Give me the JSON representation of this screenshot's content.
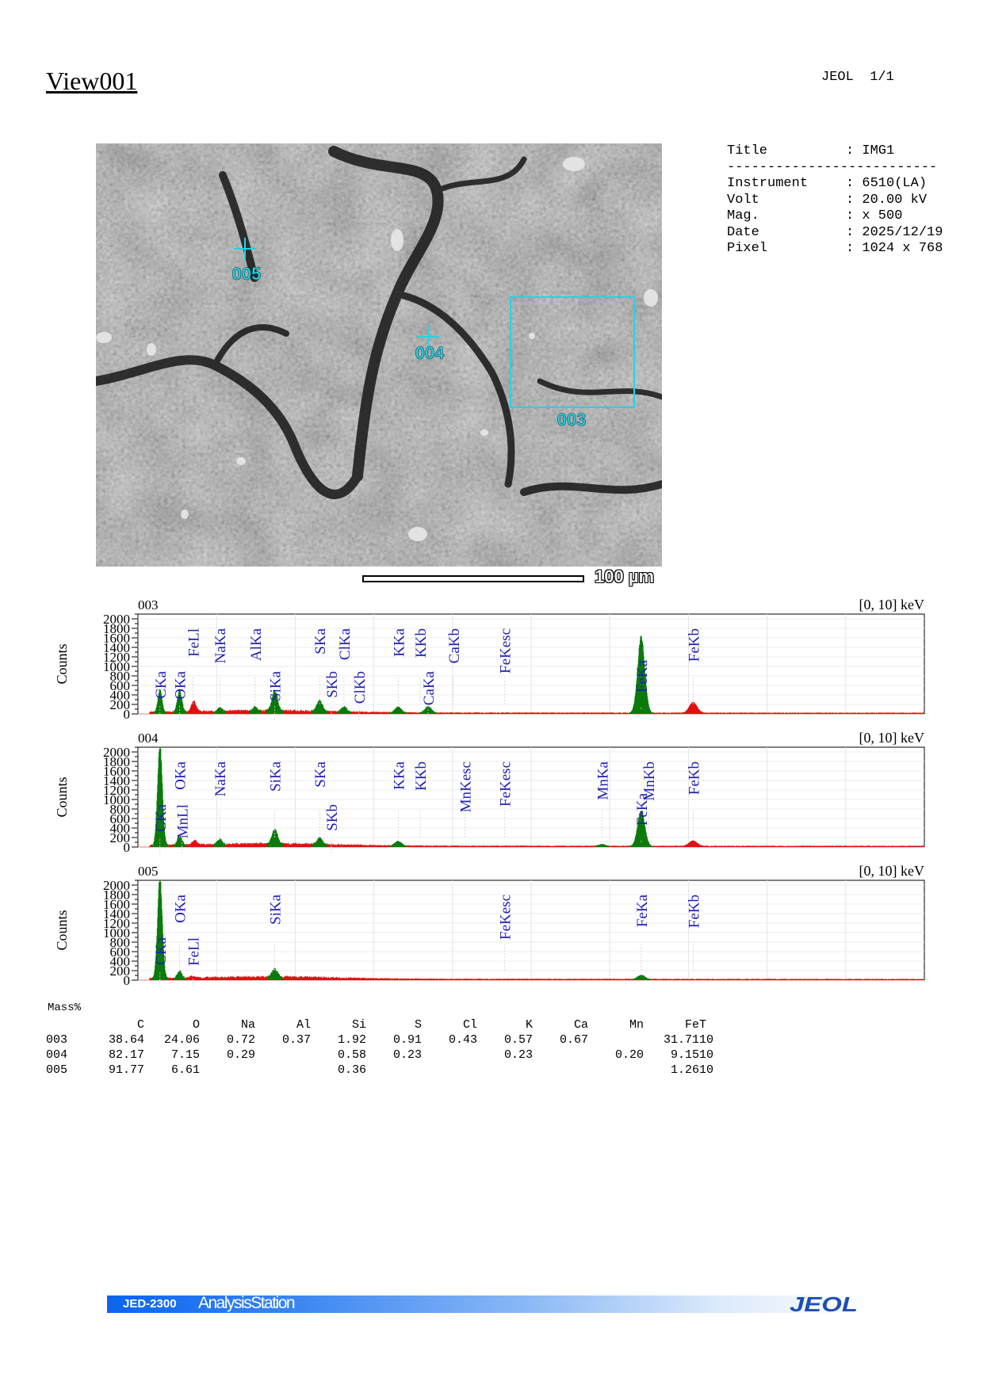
{
  "page": {
    "view_title": "View001",
    "maker": "JEOL",
    "page_number": "1/1"
  },
  "image": {
    "scale_label": "100 µm",
    "markers": [
      {
        "id": "005",
        "type": "point"
      },
      {
        "id": "004",
        "type": "point"
      },
      {
        "id": "003",
        "type": "area"
      }
    ],
    "marker_color": "#22d3e6"
  },
  "meta": {
    "separator": "--------------------------",
    "title": {
      "label": "Title",
      "value": ": IMG1"
    },
    "rows": [
      {
        "label": "Instrument",
        "value": ": 6510(LA)"
      },
      {
        "label": "Volt",
        "value": ": 20.00 kV"
      },
      {
        "label": "Mag.",
        "value": ": x 500"
      },
      {
        "label": "Date",
        "value": ": 2025/12/19"
      },
      {
        "label": "Pixel",
        "value": ": 1024 x 768"
      }
    ]
  },
  "chart_data": [
    {
      "type": "area",
      "title": "003",
      "range_label": "[0, 10] keV",
      "ylabel": "Counts",
      "xlim": [
        0,
        10
      ],
      "ylim": [
        0,
        2100
      ],
      "yticks": [
        0,
        200,
        400,
        600,
        800,
        1000,
        1200,
        1400,
        1600,
        1800,
        2000
      ],
      "colors": {
        "identified": "#0a7a0a",
        "background": "#e01010",
        "label": "#1f1fb4"
      },
      "peaks": [
        {
          "energy": 0.28,
          "height": 480,
          "width": 0.025,
          "color": "green"
        },
        {
          "energy": 0.53,
          "height": 450,
          "width": 0.028,
          "color": "green"
        },
        {
          "energy": 0.71,
          "height": 220,
          "width": 0.03,
          "color": "red"
        },
        {
          "energy": 1.04,
          "height": 70,
          "width": 0.03,
          "color": "green"
        },
        {
          "energy": 1.49,
          "height": 80,
          "width": 0.03,
          "color": "green"
        },
        {
          "energy": 1.74,
          "height": 420,
          "width": 0.035,
          "color": "green"
        },
        {
          "energy": 2.31,
          "height": 230,
          "width": 0.035,
          "color": "green"
        },
        {
          "energy": 2.62,
          "height": 110,
          "width": 0.035,
          "color": "green"
        },
        {
          "energy": 3.31,
          "height": 120,
          "width": 0.04,
          "color": "green"
        },
        {
          "energy": 3.69,
          "height": 140,
          "width": 0.04,
          "color": "green"
        },
        {
          "energy": 6.4,
          "height": 1580,
          "width": 0.045,
          "color": "green"
        },
        {
          "energy": 7.06,
          "height": 220,
          "width": 0.05,
          "color": "red"
        }
      ],
      "labels": [
        {
          "text": "CKa",
          "energy": 0.28,
          "pos": "low"
        },
        {
          "text": "OKa",
          "energy": 0.53,
          "pos": "low"
        },
        {
          "text": "FeLl",
          "energy": 0.7,
          "pos": "high"
        },
        {
          "text": "NaKa",
          "energy": 1.04,
          "pos": "high"
        },
        {
          "text": "AlKa",
          "energy": 1.49,
          "pos": "high"
        },
        {
          "text": "SiKa",
          "energy": 1.74,
          "pos": "low"
        },
        {
          "text": "SKa",
          "energy": 2.31,
          "pos": "high"
        },
        {
          "text": "SKb",
          "energy": 2.46,
          "pos": "low"
        },
        {
          "text": "ClKa",
          "energy": 2.62,
          "pos": "high"
        },
        {
          "text": "ClKb",
          "energy": 2.81,
          "pos": "low"
        },
        {
          "text": "KKa",
          "energy": 3.31,
          "pos": "high"
        },
        {
          "text": "KKb",
          "energy": 3.59,
          "pos": "high"
        },
        {
          "text": "CaKa",
          "energy": 3.69,
          "pos": "low"
        },
        {
          "text": "CaKb",
          "energy": 4.01,
          "pos": "high"
        },
        {
          "text": "FeKesc",
          "energy": 4.66,
          "pos": "high"
        },
        {
          "text": "FeKa",
          "energy": 6.4,
          "pos": "mid"
        },
        {
          "text": "FeKb",
          "energy": 7.06,
          "pos": "high"
        }
      ]
    },
    {
      "type": "area",
      "title": "004",
      "range_label": "[0, 10] keV",
      "ylabel": "Counts",
      "xlim": [
        0,
        10
      ],
      "ylim": [
        0,
        2100
      ],
      "yticks": [
        0,
        200,
        400,
        600,
        800,
        1000,
        1200,
        1400,
        1600,
        1800,
        2000
      ],
      "colors": {
        "identified": "#0a7a0a",
        "background": "#e01010",
        "label": "#1f1fb4"
      },
      "peaks": [
        {
          "energy": 0.28,
          "height": 2100,
          "width": 0.03,
          "color": "green"
        },
        {
          "energy": 0.53,
          "height": 200,
          "width": 0.028,
          "color": "green"
        },
        {
          "energy": 0.72,
          "height": 90,
          "width": 0.03,
          "color": "red"
        },
        {
          "energy": 1.04,
          "height": 110,
          "width": 0.03,
          "color": "green"
        },
        {
          "energy": 1.74,
          "height": 310,
          "width": 0.035,
          "color": "green"
        },
        {
          "energy": 2.31,
          "height": 140,
          "width": 0.035,
          "color": "green"
        },
        {
          "energy": 3.31,
          "height": 100,
          "width": 0.04,
          "color": "green"
        },
        {
          "energy": 5.9,
          "height": 40,
          "width": 0.04,
          "color": "green"
        },
        {
          "energy": 6.4,
          "height": 740,
          "width": 0.045,
          "color": "green"
        },
        {
          "energy": 7.06,
          "height": 110,
          "width": 0.05,
          "color": "red"
        }
      ],
      "labels": [
        {
          "text": "CKa",
          "energy": 0.28,
          "pos": "low"
        },
        {
          "text": "MnLl",
          "energy": 0.56,
          "pos": "low"
        },
        {
          "text": "OKa",
          "energy": 0.53,
          "pos": "high"
        },
        {
          "text": "NaKa",
          "energy": 1.04,
          "pos": "high"
        },
        {
          "text": "SiKa",
          "energy": 1.74,
          "pos": "high"
        },
        {
          "text": "SKa",
          "energy": 2.31,
          "pos": "high"
        },
        {
          "text": "SKb",
          "energy": 2.46,
          "pos": "low"
        },
        {
          "text": "KKa",
          "energy": 3.31,
          "pos": "high"
        },
        {
          "text": "KKb",
          "energy": 3.59,
          "pos": "high"
        },
        {
          "text": "MnKesc",
          "energy": 4.16,
          "pos": "high"
        },
        {
          "text": "FeKesc",
          "energy": 4.66,
          "pos": "high"
        },
        {
          "text": "MnKa",
          "energy": 5.9,
          "pos": "high"
        },
        {
          "text": "FeKa",
          "energy": 6.4,
          "pos": "mid"
        },
        {
          "text": "MnKb",
          "energy": 6.49,
          "pos": "high"
        },
        {
          "text": "FeKb",
          "energy": 7.06,
          "pos": "high"
        }
      ]
    },
    {
      "type": "area",
      "title": "005",
      "range_label": "[0, 10] keV",
      "ylabel": "Counts",
      "xlim": [
        0,
        10
      ],
      "ylim": [
        0,
        2100
      ],
      "yticks": [
        0,
        200,
        400,
        600,
        800,
        1000,
        1200,
        1400,
        1600,
        1800,
        2000
      ],
      "colors": {
        "identified": "#0a7a0a",
        "background": "#e01010",
        "label": "#1f1fb4"
      },
      "peaks": [
        {
          "energy": 0.28,
          "height": 2100,
          "width": 0.03,
          "color": "green"
        },
        {
          "energy": 0.53,
          "height": 150,
          "width": 0.028,
          "color": "green"
        },
        {
          "energy": 0.7,
          "height": 40,
          "width": 0.03,
          "color": "red"
        },
        {
          "energy": 1.74,
          "height": 170,
          "width": 0.035,
          "color": "green"
        },
        {
          "energy": 6.4,
          "height": 90,
          "width": 0.045,
          "color": "green"
        }
      ],
      "labels": [
        {
          "text": "CKa",
          "energy": 0.28,
          "pos": "low"
        },
        {
          "text": "OKa",
          "energy": 0.53,
          "pos": "high"
        },
        {
          "text": "FeLl",
          "energy": 0.7,
          "pos": "low"
        },
        {
          "text": "SiKa",
          "energy": 1.74,
          "pos": "high"
        },
        {
          "text": "FeKesc",
          "energy": 4.66,
          "pos": "high"
        },
        {
          "text": "FeKa",
          "energy": 6.4,
          "pos": "high"
        },
        {
          "text": "FeKb",
          "energy": 7.06,
          "pos": "high"
        }
      ]
    }
  ],
  "mass": {
    "title": "Mass%",
    "columns": [
      "C",
      "O",
      "Na",
      "Al",
      "Si",
      "S",
      "Cl",
      "K",
      "Ca",
      "Mn",
      "Fe",
      "T"
    ],
    "rows": [
      {
        "id": "003",
        "values": [
          "38.64",
          "24.06",
          "0.72",
          "0.37",
          "1.92",
          "0.91",
          "0.43",
          "0.57",
          "0.67",
          "",
          "31.71",
          "10"
        ]
      },
      {
        "id": "004",
        "values": [
          "82.17",
          "7.15",
          "0.29",
          "",
          "0.58",
          "0.23",
          "",
          "0.23",
          "",
          "0.20",
          "9.15",
          "10"
        ]
      },
      {
        "id": "005",
        "values": [
          "91.77",
          "6.61",
          "",
          "",
          "0.36",
          "",
          "",
          "",
          "",
          "",
          "1.26",
          "10"
        ]
      }
    ]
  },
  "footer": {
    "product": "JED-2300",
    "station": "AnalysisStation",
    "logo": "JEOL"
  }
}
